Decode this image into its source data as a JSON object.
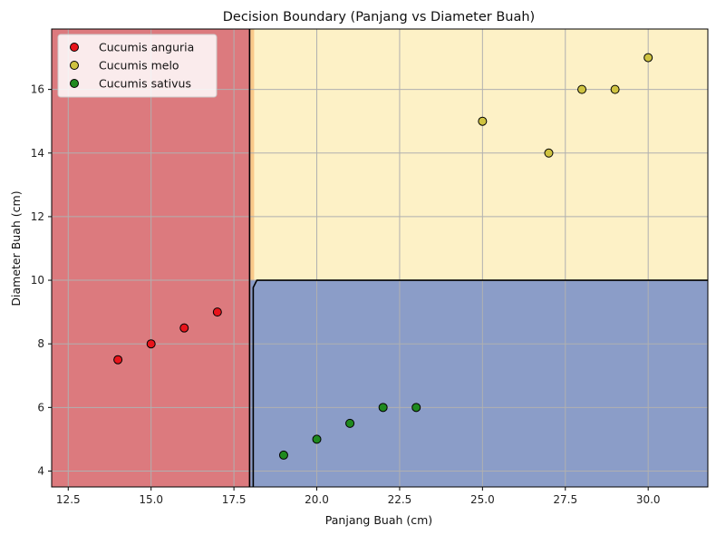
{
  "chart_data": {
    "type": "scatter",
    "title": "Decision Boundary (Panjang vs Diameter Buah)",
    "xlabel": "Panjang Buah (cm)",
    "ylabel": "Diameter Buah (cm)",
    "xlim": [
      12,
      31.8
    ],
    "ylim": [
      3.5,
      17.9
    ],
    "xticks": [
      12.5,
      15.0,
      17.5,
      20.0,
      22.5,
      25.0,
      27.5,
      30.0
    ],
    "xtick_labels": [
      "12.5",
      "15.0",
      "17.5",
      "20.0",
      "22.5",
      "25.0",
      "27.5",
      "30.0"
    ],
    "yticks": [
      4,
      6,
      8,
      10,
      12,
      14,
      16
    ],
    "ytick_labels": [
      "4",
      "6",
      "8",
      "10",
      "12",
      "14",
      "16"
    ],
    "grid": true,
    "legend_position": "top-left",
    "decision_regions": [
      {
        "class": "Cucumis anguria",
        "x_range": [
          12,
          18.0
        ],
        "y_range": [
          3.5,
          17.9
        ],
        "color": "#dc7a7e"
      },
      {
        "class": "Cucumis melo",
        "x_range": [
          18.0,
          31.8
        ],
        "y_range": [
          10.0,
          17.9
        ],
        "color": "#fdf1c6"
      },
      {
        "class": "Cucumis sativus",
        "x_range": [
          18.0,
          31.8
        ],
        "y_range": [
          3.5,
          10.0
        ],
        "color": "#8b9dc8"
      }
    ],
    "boundary": {
      "x": 18.0,
      "y": 10.0
    },
    "series": [
      {
        "name": "Cucumis anguria",
        "color": "#e8141b",
        "points": [
          [
            14,
            7.5
          ],
          [
            15,
            8
          ],
          [
            16,
            8.5
          ],
          [
            17,
            9
          ]
        ]
      },
      {
        "name": "Cucumis melo",
        "color": "#cfc341",
        "points": [
          [
            25,
            15
          ],
          [
            27,
            14
          ],
          [
            28,
            16
          ],
          [
            29,
            16
          ],
          [
            30,
            17
          ]
        ]
      },
      {
        "name": "Cucumis sativus",
        "color": "#1f8a1f",
        "points": [
          [
            19,
            4.5
          ],
          [
            20,
            5
          ],
          [
            21,
            5.5
          ],
          [
            22,
            6
          ],
          [
            23,
            6
          ]
        ]
      }
    ]
  }
}
